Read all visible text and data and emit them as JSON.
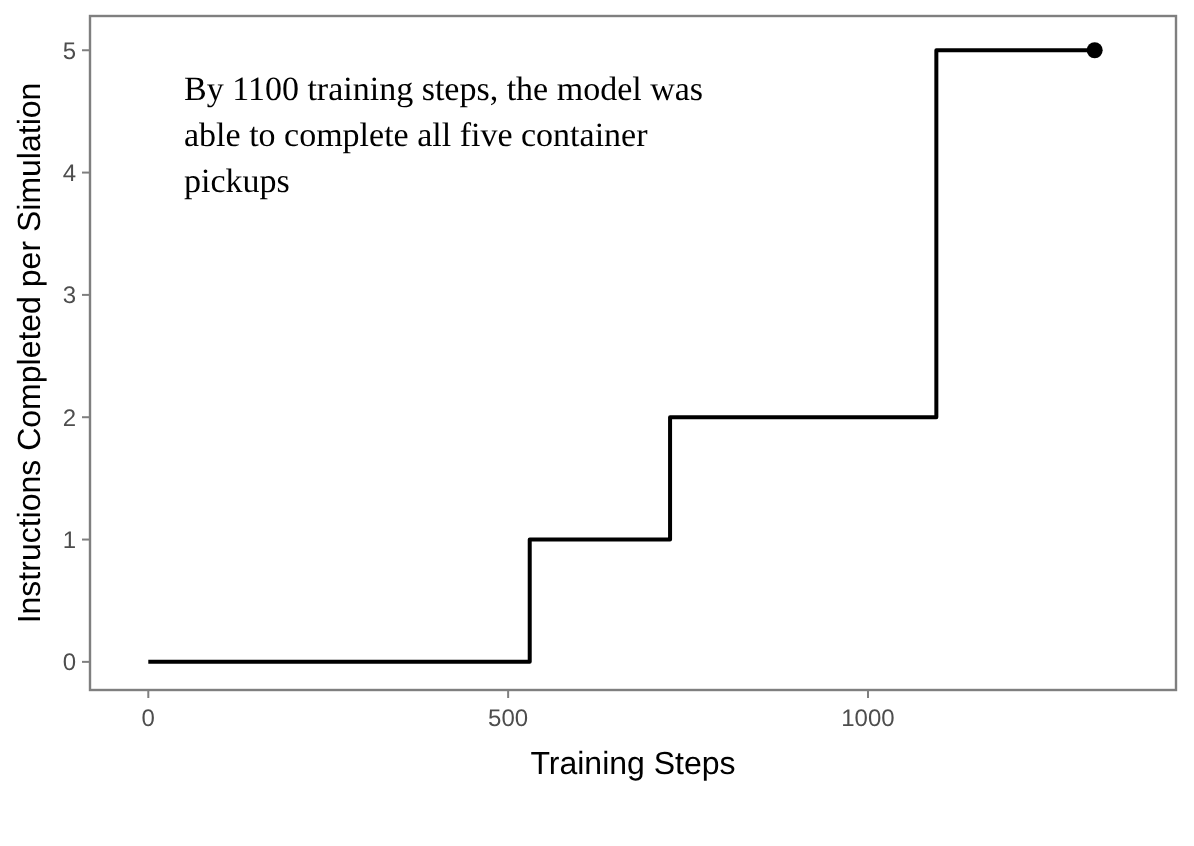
{
  "chart_data": {
    "type": "step",
    "xlabel": "Training Steps",
    "ylabel": "Instructions Completed per Simulation",
    "xlim": [
      -81,
      1428
    ],
    "ylim": [
      -0.23,
      5.28
    ],
    "xticks": [
      0,
      500,
      1000
    ],
    "yticks": [
      0,
      1,
      2,
      3,
      4,
      5
    ],
    "grid": false,
    "annotations": [
      "By 1100 training steps, the model was able to complete all five container pickups"
    ],
    "series": [
      {
        "color": "#000000",
        "x": [
          0,
          530,
          725,
          1095,
          1315
        ],
        "values": [
          0,
          1,
          2,
          5,
          5
        ],
        "marker": "none"
      },
      {
        "type": "scatter",
        "color": "#000000",
        "x": [
          1315
        ],
        "values": [
          5
        ],
        "marker": "circle"
      }
    ]
  }
}
